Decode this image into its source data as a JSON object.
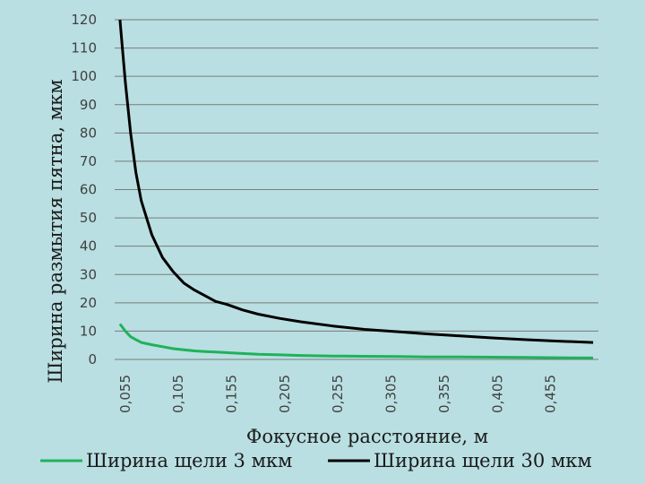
{
  "chart_data": {
    "type": "line",
    "title": "",
    "xlabel": "Фокусное расстояние, м",
    "ylabel": "Ширина размытия пятна, мкм",
    "ylim": [
      0,
      120
    ],
    "xlim": [
      0.045,
      0.5
    ],
    "yticks": [
      "0",
      "10",
      "20",
      "30",
      "40",
      "50",
      "60",
      "70",
      "80",
      "90",
      "100",
      "110",
      "120"
    ],
    "ytick_values": [
      0,
      10,
      20,
      30,
      40,
      50,
      60,
      70,
      80,
      90,
      100,
      110,
      120
    ],
    "xticks": [
      "0,055",
      "0,105",
      "0,155",
      "0,205",
      "0,255",
      "0,305",
      "0,355",
      "0,405",
      "0,455"
    ],
    "xtick_values": [
      0.055,
      0.105,
      0.155,
      0.205,
      0.255,
      0.305,
      0.355,
      0.405,
      0.455
    ],
    "grid": "horizontal",
    "legend_position": "bottom",
    "x": [
      0.05,
      0.055,
      0.06,
      0.065,
      0.07,
      0.08,
      0.09,
      0.1,
      0.11,
      0.12,
      0.13,
      0.14,
      0.15,
      0.165,
      0.18,
      0.2,
      0.22,
      0.25,
      0.28,
      0.31,
      0.34,
      0.37,
      0.4,
      0.43,
      0.46,
      0.495
    ],
    "series": [
      {
        "name": "Ширина щели 3 мкм",
        "color": "#1fb25a",
        "values": [
          12.5,
          10,
          8,
          7,
          6,
          5.2,
          4.5,
          3.8,
          3.4,
          3,
          2.8,
          2.6,
          2.4,
          2.1,
          1.8,
          1.6,
          1.4,
          1.2,
          1.1,
          1,
          0.9,
          0.85,
          0.8,
          0.7,
          0.6,
          0.5
        ]
      },
      {
        "name": "Ширина щели 30 мкм",
        "color": "#000000",
        "values": [
          120,
          98,
          80,
          66,
          56,
          44,
          36,
          31,
          27,
          24.5,
          22.5,
          20.5,
          19.5,
          17.5,
          16,
          14.5,
          13.3,
          11.8,
          10.6,
          9.8,
          9,
          8.3,
          7.6,
          7,
          6.5,
          6
        ]
      }
    ]
  }
}
